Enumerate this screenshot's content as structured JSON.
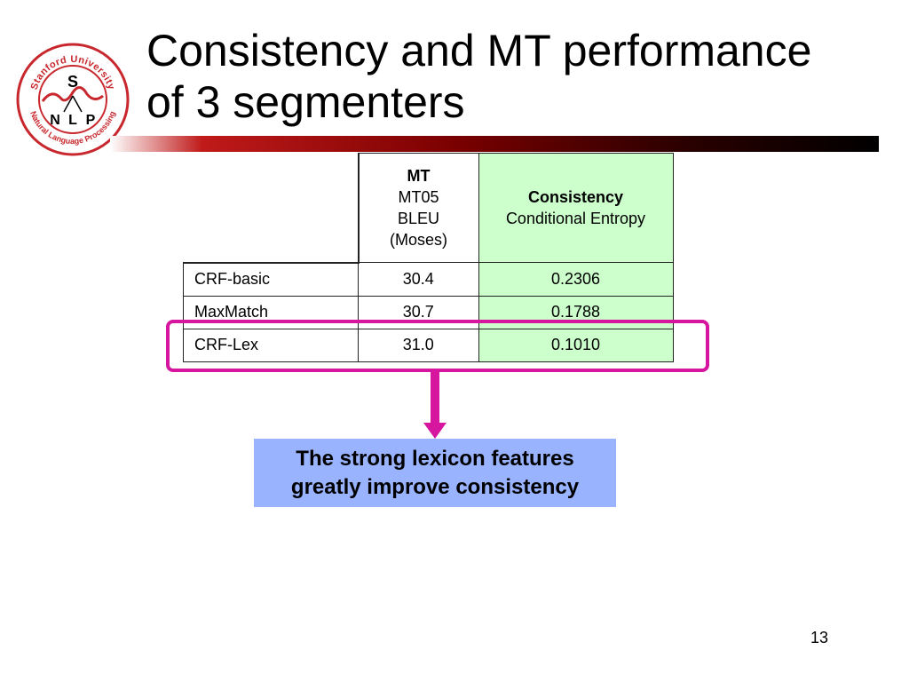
{
  "slide": {
    "title_line1": "Consistency and MT performance",
    "title_line2": "of 3 segmenters",
    "page_number": "13"
  },
  "logo": {
    "top_text": "Stanford University",
    "bottom_text": "Natural Language Processing",
    "center_top": "S",
    "center_left": "N",
    "center_mid": "L",
    "center_right": "P"
  },
  "table": {
    "header_mt": {
      "line1": "MT",
      "line2": "MT05",
      "line3": "BLEU",
      "line4": "(Moses)"
    },
    "header_consistency": {
      "line1": "Consistency",
      "line2": "Conditional Entropy"
    },
    "rows": [
      {
        "name": "CRF-basic",
        "mt": "30.4",
        "consistency": "0.2306"
      },
      {
        "name": "MaxMatch",
        "mt": "30.7",
        "consistency": "0.1788"
      },
      {
        "name": "CRF-Lex",
        "mt": "31.0",
        "consistency": "0.1010"
      }
    ]
  },
  "callout": {
    "line1": "The strong lexicon features",
    "line2": "greatly improve consistency"
  },
  "colors": {
    "highlight": "#d6169e",
    "callout_bg": "#99b3ff",
    "consistency_bg": "#ccffcc",
    "logo_red": "#c8282d"
  }
}
